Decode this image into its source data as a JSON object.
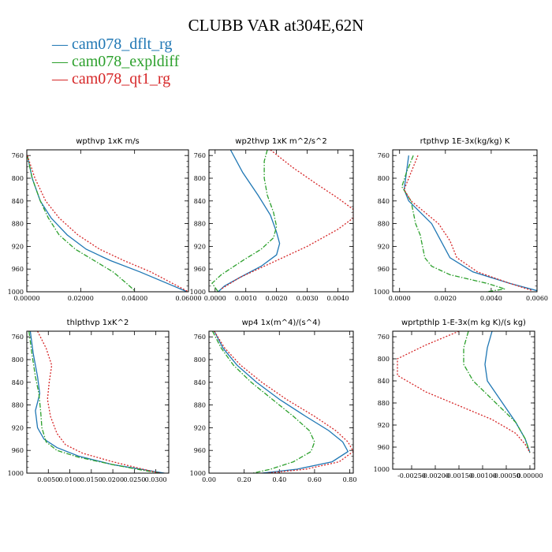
{
  "title": "CLUBB VAR at304E,62N",
  "legend": [
    {
      "name": "cam078_dflt_rg",
      "color": "#1f77b4"
    },
    {
      "name": "cam078_expldiff",
      "color": "#2ca02c"
    },
    {
      "name": "cam078_qt1_rg",
      "color": "#d62728"
    }
  ],
  "chart_data": [
    {
      "type": "line",
      "title": "wpthvp  1xK m/s",
      "xlim": [
        0,
        0.06
      ],
      "ylim": [
        1000,
        750
      ],
      "xticks": [
        0,
        0.02,
        0.04,
        0.06
      ],
      "xtick_labels": [
        "0.00000",
        "0.02000",
        "0.04000",
        "0.06000"
      ],
      "yticks": [
        760,
        800,
        840,
        880,
        920,
        960,
        1000
      ],
      "series": [
        {
          "name": "cam078_dflt_rg",
          "style": "solid",
          "x": [
            0.0002,
            0.002,
            0.005,
            0.009,
            0.015,
            0.022,
            0.031,
            0.042,
            0.052,
            0.0595
          ],
          "y": [
            760,
            800,
            840,
            870,
            900,
            925,
            945,
            965,
            985,
            1000
          ]
        },
        {
          "name": "cam078_expldiff",
          "style": "dashdot",
          "x": [
            0.0002,
            0.002,
            0.005,
            0.008,
            0.012,
            0.018,
            0.025,
            0.032,
            0.037,
            0.04
          ],
          "y": [
            760,
            800,
            840,
            870,
            900,
            925,
            945,
            965,
            985,
            998
          ]
        },
        {
          "name": "cam078_qt1_rg",
          "style": "dotted",
          "x": [
            0.0002,
            0.003,
            0.007,
            0.012,
            0.019,
            0.027,
            0.036,
            0.046,
            0.054,
            0.06
          ],
          "y": [
            760,
            800,
            840,
            870,
            900,
            925,
            945,
            965,
            985,
            1000
          ]
        }
      ]
    },
    {
      "type": "line",
      "title": "wp2thvp  1xK m^2/s^2",
      "xlim": [
        -0.0002,
        0.0045
      ],
      "ylim": [
        1000,
        750
      ],
      "xticks": [
        0,
        0.001,
        0.002,
        0.003,
        0.004
      ],
      "xtick_labels": [
        "0.0000",
        "0.0010",
        "0.0020",
        "0.0030",
        "0.0040"
      ],
      "yticks": [
        760,
        800,
        840,
        880,
        920,
        960,
        1000
      ],
      "series": [
        {
          "name": "cam078_dflt_rg",
          "style": "solid",
          "x": [
            0.0005,
            0.0009,
            0.0014,
            0.0018,
            0.002,
            0.0021,
            0.002,
            0.0015,
            0.0008,
            0.0003,
            0.0001
          ],
          "y": [
            750,
            790,
            830,
            865,
            895,
            915,
            935,
            955,
            975,
            990,
            1000
          ]
        },
        {
          "name": "cam078_expldiff",
          "style": "dashdot",
          "x": [
            0.0017,
            0.0016,
            0.0016,
            0.0017,
            0.0019,
            0.002,
            0.0019,
            0.0015,
            0.0009,
            0.0002,
            -0.0001,
            0.0001
          ],
          "y": [
            750,
            770,
            800,
            830,
            860,
            885,
            905,
            925,
            945,
            970,
            985,
            1000
          ]
        },
        {
          "name": "cam078_qt1_rg",
          "style": "dotted",
          "x": [
            0.0018,
            0.0025,
            0.0033,
            0.004,
            0.0045,
            0.0045,
            0.004,
            0.003,
            0.0018,
            0.0008,
            0.0002
          ],
          "y": [
            750,
            780,
            810,
            835,
            855,
            870,
            890,
            920,
            950,
            975,
            995
          ]
        }
      ]
    },
    {
      "type": "line",
      "title": "rtpthvp  1E-3x(kg/kg) K",
      "xlim": [
        -0.0003,
        0.006
      ],
      "ylim": [
        1000,
        750
      ],
      "xticks": [
        0,
        0.002,
        0.004,
        0.006
      ],
      "xtick_labels": [
        "0.0000",
        "0.0020",
        "0.0040",
        "0.0060"
      ],
      "yticks": [
        760,
        800,
        840,
        880,
        920,
        960,
        1000
      ],
      "series": [
        {
          "name": "cam078_dflt_rg",
          "style": "solid",
          "x": [
            0.0004,
            0.0003,
            0.0002,
            0.0004,
            0.0009,
            0.0014,
            0.0018,
            0.0022,
            0.0032,
            0.0048,
            0.006
          ],
          "y": [
            760,
            790,
            820,
            840,
            860,
            880,
            910,
            940,
            965,
            985,
            998
          ]
        },
        {
          "name": "cam078_expldiff",
          "style": "dashdot",
          "x": [
            0.0006,
            0.0003,
            0.0001,
            0.0005,
            0.0006,
            0.0007,
            0.0009,
            0.001,
            0.0011,
            0.0014,
            0.0022,
            0.0038,
            0.0046,
            0.0038
          ],
          "y": [
            760,
            790,
            815,
            840,
            860,
            880,
            900,
            920,
            940,
            955,
            970,
            985,
            995,
            1000
          ]
        },
        {
          "name": "cam078_qt1_rg",
          "style": "dotted",
          "x": [
            0.0008,
            0.0005,
            0.0002,
            0.0005,
            0.0011,
            0.0017,
            0.0022,
            0.0025,
            0.0034,
            0.0048,
            0.0058
          ],
          "y": [
            760,
            790,
            820,
            840,
            860,
            880,
            910,
            940,
            965,
            985,
            998
          ]
        }
      ]
    },
    {
      "type": "line",
      "title": "thlpthvp  1xK^2",
      "xlim": [
        0,
        0.033
      ],
      "ylim": [
        1000,
        750
      ],
      "xticks": [
        0.005,
        0.01,
        0.015,
        0.02,
        0.025,
        0.03
      ],
      "xtick_labels": [
        "0.0050",
        "0.0100",
        "0.0150",
        "0.0200",
        "0.0250",
        "0.0300"
      ],
      "yticks": [
        760,
        800,
        840,
        880,
        920,
        960,
        1000
      ],
      "series": [
        {
          "name": "cam078_dflt_rg",
          "style": "solid",
          "x": [
            0.0008,
            0.0015,
            0.0025,
            0.003,
            0.002,
            0.0025,
            0.004,
            0.007,
            0.012,
            0.02,
            0.028,
            0.032
          ],
          "y": [
            750,
            790,
            830,
            860,
            890,
            920,
            940,
            955,
            970,
            985,
            995,
            1000
          ]
        },
        {
          "name": "cam078_expldiff",
          "style": "dashdot",
          "x": [
            0.0005,
            0.0012,
            0.002,
            0.0028,
            0.0032,
            0.0035,
            0.0045,
            0.007,
            0.012,
            0.02,
            0.027,
            0.031
          ],
          "y": [
            750,
            790,
            830,
            860,
            890,
            920,
            945,
            960,
            972,
            985,
            995,
            1000
          ]
        },
        {
          "name": "cam078_qt1_rg",
          "style": "dotted",
          "x": [
            0.0025,
            0.0045,
            0.0058,
            0.0052,
            0.0048,
            0.0055,
            0.007,
            0.009,
            0.013,
            0.02,
            0.027,
            0.031
          ],
          "y": [
            750,
            780,
            810,
            840,
            870,
            900,
            930,
            950,
            965,
            980,
            993,
            1000
          ]
        }
      ]
    },
    {
      "type": "line",
      "title": "wp4  1x(m^4)/(s^4)",
      "xlim": [
        0,
        0.82
      ],
      "ylim": [
        1000,
        750
      ],
      "xticks": [
        0,
        0.2,
        0.4,
        0.6,
        0.8
      ],
      "xtick_labels": [
        "0.00",
        "0.20",
        "0.40",
        "0.60",
        "0.80"
      ],
      "yticks": [
        760,
        800,
        840,
        880,
        920,
        960,
        1000
      ],
      "series": [
        {
          "name": "cam078_dflt_rg",
          "style": "solid",
          "x": [
            0.03,
            0.08,
            0.16,
            0.27,
            0.4,
            0.55,
            0.68,
            0.76,
            0.79,
            0.7,
            0.5,
            0.3
          ],
          "y": [
            750,
            780,
            810,
            840,
            870,
            900,
            925,
            945,
            962,
            980,
            993,
            1000
          ]
        },
        {
          "name": "cam078_expldiff",
          "style": "dashdot",
          "x": [
            0.02,
            0.07,
            0.14,
            0.24,
            0.36,
            0.48,
            0.57,
            0.6,
            0.58,
            0.48,
            0.35,
            0.25
          ],
          "y": [
            750,
            780,
            810,
            840,
            870,
            900,
            925,
            945,
            962,
            980,
            993,
            1000
          ]
        },
        {
          "name": "cam078_qt1_rg",
          "style": "dotted",
          "x": [
            0.03,
            0.09,
            0.18,
            0.3,
            0.44,
            0.6,
            0.72,
            0.79,
            0.82,
            0.74,
            0.55,
            0.33
          ],
          "y": [
            750,
            780,
            810,
            840,
            870,
            900,
            925,
            945,
            962,
            980,
            993,
            1000
          ]
        }
      ]
    },
    {
      "type": "line",
      "title": "wprtpthlp  1-E-3x(m kg K)/(s kg)",
      "xlim": [
        -0.0029,
        0.0001
      ],
      "ylim": [
        1000,
        750
      ],
      "xticks": [
        -0.0025,
        -0.002,
        -0.0015,
        -0.001,
        -0.0005,
        0
      ],
      "xtick_labels": [
        "-0.00250",
        "-0.00200",
        "-0.00150",
        "-0.00100",
        "-0.00050",
        "0.00000"
      ],
      "yticks": [
        760,
        800,
        840,
        880,
        920,
        960,
        1000
      ],
      "series": [
        {
          "name": "cam078_dflt_rg",
          "style": "solid",
          "x": [
            -0.0008,
            -0.0009,
            -0.00095,
            -0.0009,
            -0.0007,
            -0.0005,
            -0.0003,
            -0.0001,
            0.0
          ],
          "y": [
            750,
            780,
            810,
            840,
            865,
            890,
            915,
            945,
            970
          ]
        },
        {
          "name": "cam078_expldiff",
          "style": "dashdot",
          "x": [
            -0.0013,
            -0.0014,
            -0.0014,
            -0.0012,
            -0.0009,
            -0.0006,
            -0.0003,
            -0.0001,
            0.0
          ],
          "y": [
            750,
            780,
            810,
            840,
            865,
            890,
            915,
            945,
            970
          ]
        },
        {
          "name": "cam078_qt1_rg",
          "style": "dotted",
          "x": [
            -0.0015,
            -0.0022,
            -0.0028,
            -0.0028,
            -0.0022,
            -0.0015,
            -0.0008,
            -0.0003,
            -0.0001,
            0.0
          ],
          "y": [
            750,
            775,
            800,
            830,
            860,
            885,
            910,
            935,
            955,
            970
          ]
        }
      ]
    }
  ]
}
